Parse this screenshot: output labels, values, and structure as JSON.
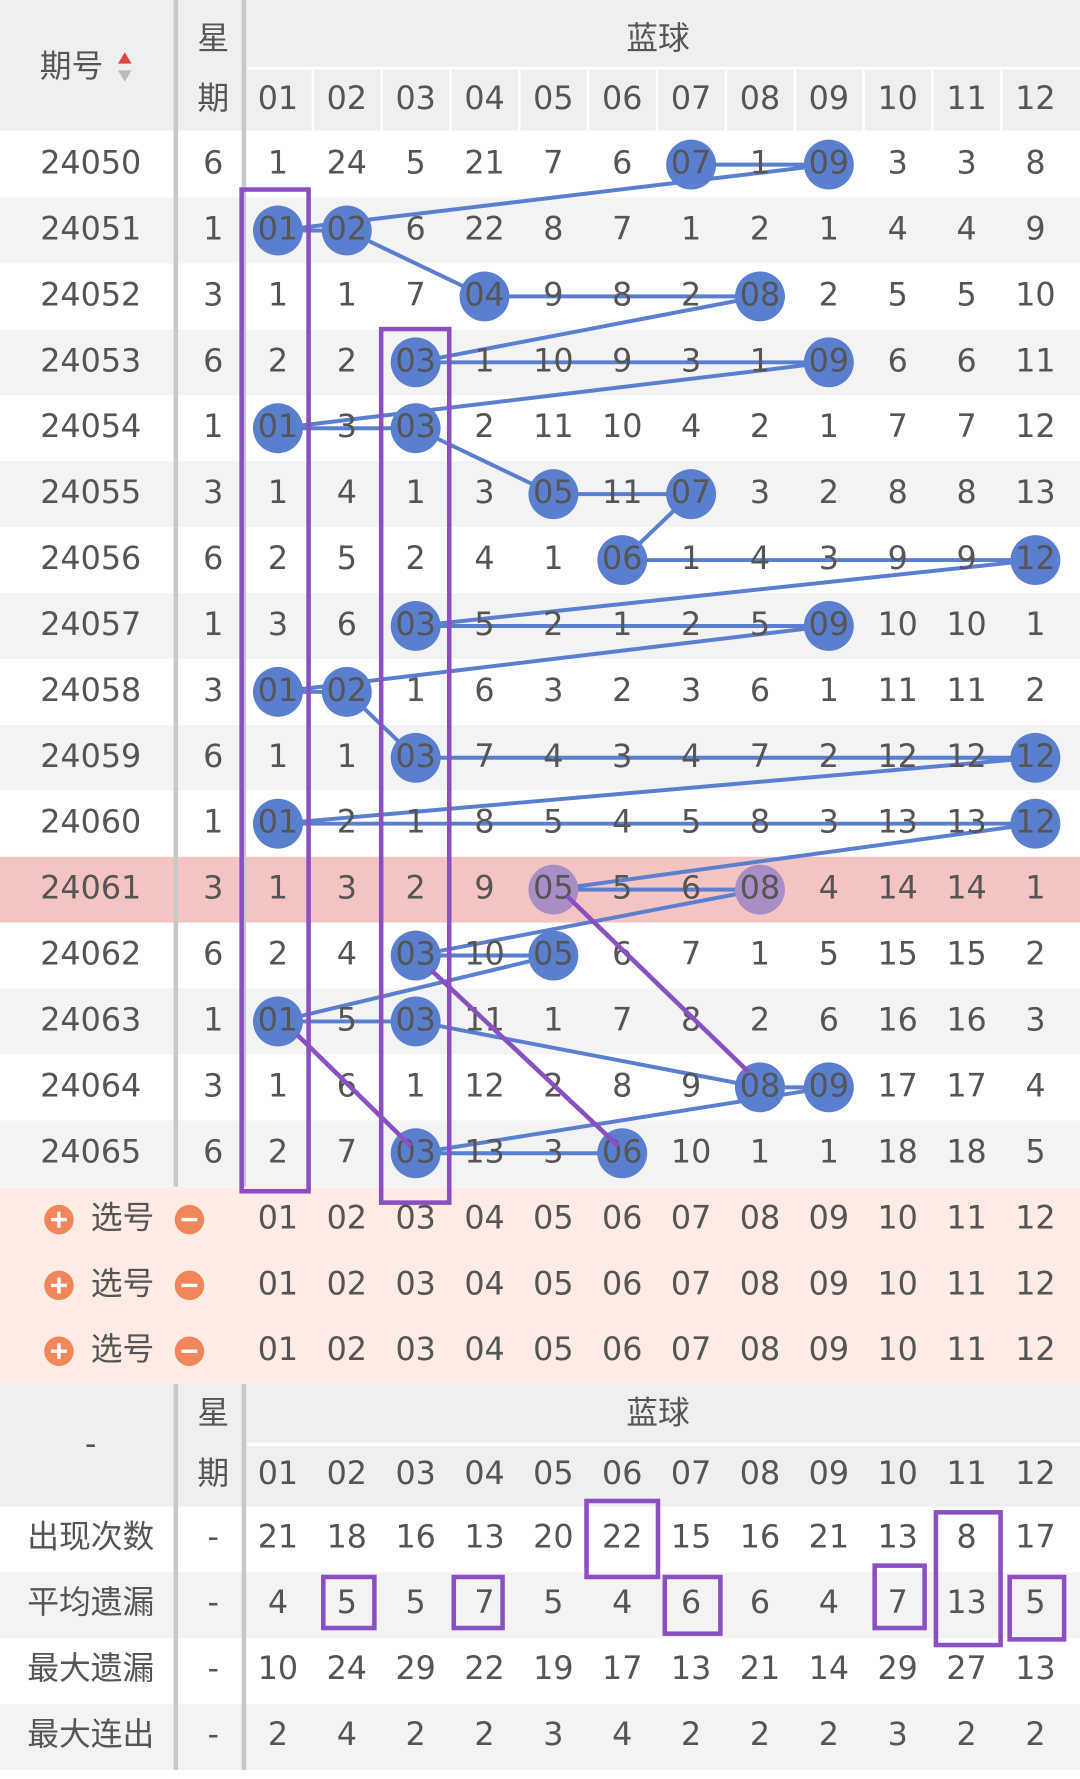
{
  "header": {
    "period": "期号",
    "week_top": "星",
    "week_bottom": "期",
    "group": "蓝球",
    "columns": [
      "01",
      "02",
      "03",
      "04",
      "05",
      "06",
      "07",
      "08",
      "09",
      "10",
      "11",
      "12"
    ]
  },
  "rows": [
    {
      "period": "24050",
      "week": "6",
      "cells": [
        "1",
        "24",
        "5",
        "21",
        "7",
        "6",
        "07",
        "1",
        "09",
        "3",
        "3",
        "8"
      ],
      "hit": [
        6,
        8
      ]
    },
    {
      "period": "24051",
      "week": "1",
      "cells": [
        "01",
        "02",
        "6",
        "22",
        "8",
        "7",
        "1",
        "2",
        "1",
        "4",
        "4",
        "9"
      ],
      "hit": [
        0,
        1
      ]
    },
    {
      "period": "24052",
      "week": "3",
      "cells": [
        "1",
        "1",
        "7",
        "04",
        "9",
        "8",
        "2",
        "08",
        "2",
        "5",
        "5",
        "10"
      ],
      "hit": [
        3,
        7
      ]
    },
    {
      "period": "24053",
      "week": "6",
      "cells": [
        "2",
        "2",
        "03",
        "1",
        "10",
        "9",
        "3",
        "1",
        "09",
        "6",
        "6",
        "11"
      ],
      "hit": [
        2,
        8
      ]
    },
    {
      "period": "24054",
      "week": "1",
      "cells": [
        "01",
        "3",
        "03",
        "2",
        "11",
        "10",
        "4",
        "2",
        "1",
        "7",
        "7",
        "12"
      ],
      "hit": [
        0,
        2
      ]
    },
    {
      "period": "24055",
      "week": "3",
      "cells": [
        "1",
        "4",
        "1",
        "3",
        "05",
        "11",
        "07",
        "3",
        "2",
        "8",
        "8",
        "13"
      ],
      "hit": [
        4,
        6
      ]
    },
    {
      "period": "24056",
      "week": "6",
      "cells": [
        "2",
        "5",
        "2",
        "4",
        "1",
        "06",
        "1",
        "4",
        "3",
        "9",
        "9",
        "12"
      ],
      "hit": [
        5,
        11
      ]
    },
    {
      "period": "24057",
      "week": "1",
      "cells": [
        "3",
        "6",
        "03",
        "5",
        "2",
        "1",
        "2",
        "5",
        "09",
        "10",
        "10",
        "1"
      ],
      "hit": [
        2,
        8
      ]
    },
    {
      "period": "24058",
      "week": "3",
      "cells": [
        "01",
        "02",
        "1",
        "6",
        "3",
        "2",
        "3",
        "6",
        "1",
        "11",
        "11",
        "2"
      ],
      "hit": [
        0,
        1
      ]
    },
    {
      "period": "24059",
      "week": "6",
      "cells": [
        "1",
        "1",
        "03",
        "7",
        "4",
        "3",
        "4",
        "7",
        "2",
        "12",
        "12",
        "12"
      ],
      "hit": [
        2,
        11
      ]
    },
    {
      "period": "24060",
      "week": "1",
      "cells": [
        "01",
        "2",
        "1",
        "8",
        "5",
        "4",
        "5",
        "8",
        "3",
        "13",
        "13",
        "12"
      ],
      "hit": [
        0,
        11
      ]
    },
    {
      "period": "24061",
      "week": "3",
      "cells": [
        "1",
        "3",
        "2",
        "9",
        "05",
        "5",
        "6",
        "08",
        "4",
        "14",
        "14",
        "1"
      ],
      "hit": [
        4,
        7
      ],
      "highlighted": true
    },
    {
      "period": "24062",
      "week": "6",
      "cells": [
        "2",
        "4",
        "03",
        "10",
        "05",
        "6",
        "7",
        "1",
        "5",
        "15",
        "15",
        "2"
      ],
      "hit": [
        2,
        4
      ]
    },
    {
      "period": "24063",
      "week": "1",
      "cells": [
        "01",
        "5",
        "03",
        "11",
        "1",
        "7",
        "8",
        "2",
        "6",
        "16",
        "16",
        "3"
      ],
      "hit": [
        0,
        2
      ]
    },
    {
      "period": "24064",
      "week": "3",
      "cells": [
        "1",
        "6",
        "1",
        "12",
        "2",
        "8",
        "9",
        "08",
        "09",
        "17",
        "17",
        "4"
      ],
      "hit": [
        7,
        8
      ]
    },
    {
      "period": "24065",
      "week": "6",
      "cells": [
        "2",
        "7",
        "03",
        "13",
        "3",
        "06",
        "10",
        "1",
        "1",
        "18",
        "18",
        "5"
      ],
      "hit": [
        2,
        5
      ]
    }
  ],
  "picker": [
    {
      "label": "选号",
      "numbers": [
        "01",
        "02",
        "03",
        "04",
        "05",
        "06",
        "07",
        "08",
        "09",
        "10",
        "11",
        "12"
      ]
    },
    {
      "label": "选号",
      "numbers": [
        "01",
        "02",
        "03",
        "04",
        "05",
        "06",
        "07",
        "08",
        "09",
        "10",
        "11",
        "12"
      ]
    },
    {
      "label": "选号",
      "numbers": [
        "01",
        "02",
        "03",
        "04",
        "05",
        "06",
        "07",
        "08",
        "09",
        "10",
        "11",
        "12"
      ]
    }
  ],
  "stats_header": {
    "period": "-",
    "week_top": "星",
    "week_bottom": "期",
    "group": "蓝球",
    "columns": [
      "01",
      "02",
      "03",
      "04",
      "05",
      "06",
      "07",
      "08",
      "09",
      "10",
      "11",
      "12"
    ]
  },
  "stats": [
    {
      "label": "出现次数",
      "week": "-",
      "color": "#b8332b",
      "values": [
        21,
        18,
        16,
        13,
        20,
        22,
        15,
        16,
        21,
        13,
        8,
        17
      ]
    },
    {
      "label": "平均遗漏",
      "week": "-",
      "color": "#b8332b",
      "values": [
        4,
        5,
        5,
        7,
        5,
        4,
        6,
        6,
        4,
        7,
        13,
        5
      ]
    },
    {
      "label": "最大遗漏",
      "week": "-",
      "color": "#3561c4",
      "values": [
        10,
        24,
        29,
        22,
        19,
        17,
        13,
        21,
        14,
        29,
        27,
        13
      ]
    },
    {
      "label": "最大连出",
      "week": "-",
      "color": "#444444",
      "values": [
        2,
        4,
        2,
        2,
        3,
        4,
        2,
        2,
        2,
        3,
        2,
        2
      ]
    }
  ]
}
